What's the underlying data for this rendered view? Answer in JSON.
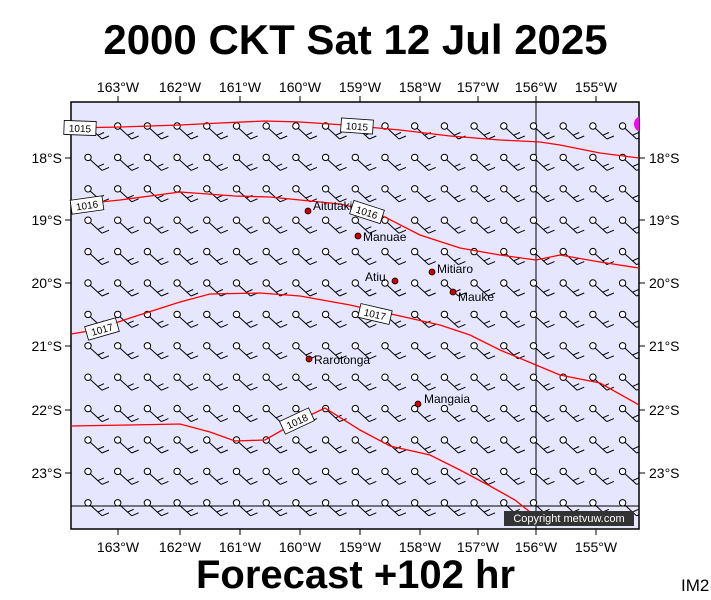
{
  "header": {
    "title": "2000 CKT Sat 12 Jul 2025"
  },
  "footer": {
    "forecast_label": "Forecast +102 hr",
    "product_code": "IM2"
  },
  "map": {
    "background_color": "#e6e6ff",
    "isobar_color": "#ff0000",
    "place_marker_color": "#cc0000",
    "high_marker_color": "#ff00ff",
    "copyright": "Copyright metvuw.com",
    "longitude_labels": [
      "163°W",
      "162°W",
      "161°W",
      "160°W",
      "159°W",
      "158°W",
      "157°W",
      "156°W",
      "155°W"
    ],
    "latitude_labels": [
      "18°S",
      "19°S",
      "20°S",
      "21°S",
      "22°S",
      "23°S"
    ],
    "isobars": [
      {
        "label": "1015"
      },
      {
        "label": "1016"
      },
      {
        "label": "1017"
      },
      {
        "label": "1018"
      }
    ],
    "places": [
      {
        "name": "Aitutaki"
      },
      {
        "name": "Manuae"
      },
      {
        "name": "Atiu"
      },
      {
        "name": "Mitiaro"
      },
      {
        "name": "Mauke"
      },
      {
        "name": "Rarotonga"
      },
      {
        "name": "Mangaia"
      }
    ],
    "wind_barbs": {
      "direction": "from south-east",
      "speed_class": "light to moderate"
    }
  }
}
